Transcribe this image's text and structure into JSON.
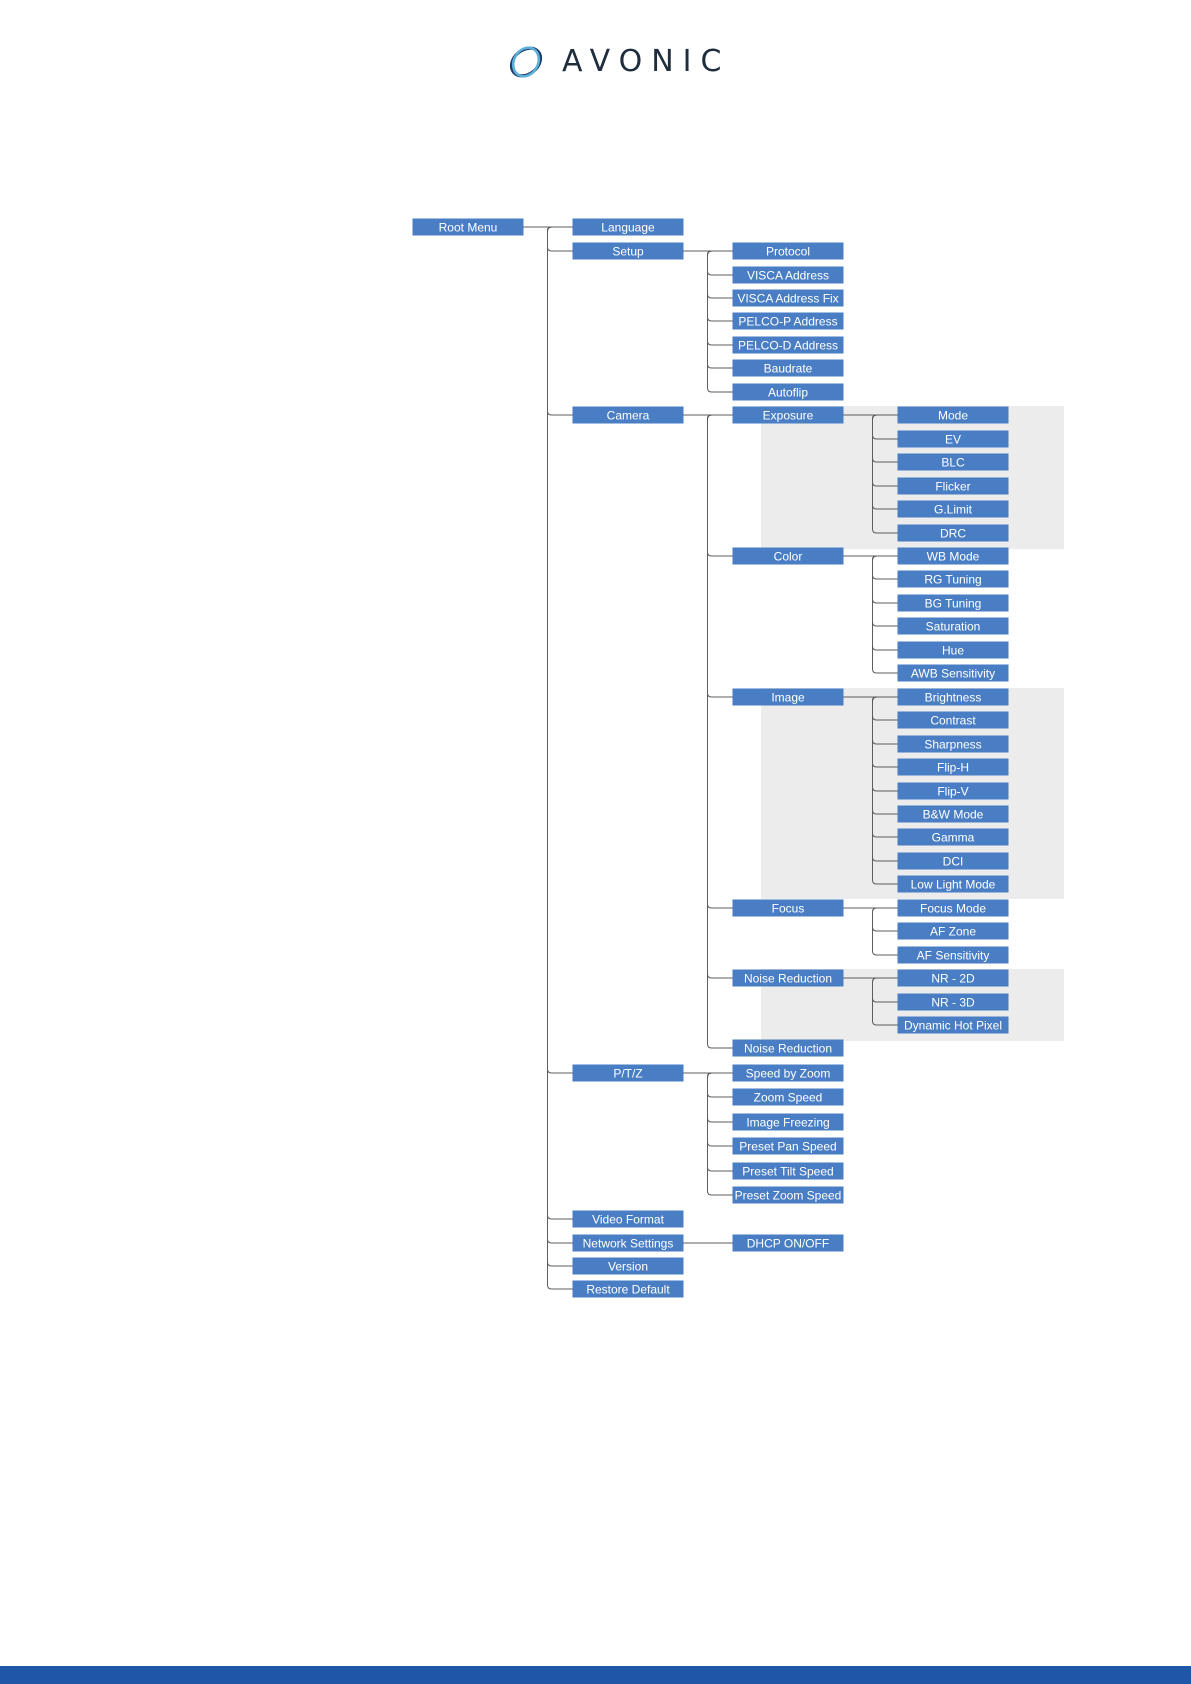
{
  "brand": {
    "name": "AVONIC",
    "colors": {
      "mark_dark": "#1f3a68",
      "mark_light": "#5ab0d8",
      "text": "#1f2d3d"
    }
  },
  "colors": {
    "box": "#4a7ec4",
    "box_text": "#ffffff",
    "line": "#5d5d5d",
    "shade": "#ececec",
    "footer": "#1f56a8"
  },
  "menu_tree": [
    {
      "id": "root",
      "label": "Root Menu",
      "level": 0
    },
    {
      "id": "language",
      "label": "Language",
      "level": 1,
      "parent": "root"
    },
    {
      "id": "setup",
      "label": "Setup",
      "level": 1,
      "parent": "root"
    },
    {
      "id": "protocol",
      "label": "Protocol",
      "level": 2,
      "parent": "setup"
    },
    {
      "id": "visca-address",
      "label": "VISCA Address",
      "level": 2,
      "parent": "setup"
    },
    {
      "id": "visca-address-fix",
      "label": "VISCA Address Fix",
      "level": 2,
      "parent": "setup"
    },
    {
      "id": "pelco-p-address",
      "label": "PELCO-P Address",
      "level": 2,
      "parent": "setup"
    },
    {
      "id": "pelco-d-address",
      "label": "PELCO-D Address",
      "level": 2,
      "parent": "setup"
    },
    {
      "id": "baudrate",
      "label": "Baudrate",
      "level": 2,
      "parent": "setup"
    },
    {
      "id": "autoflip",
      "label": "Autoflip",
      "level": 2,
      "parent": "setup"
    },
    {
      "id": "camera",
      "label": "Camera",
      "level": 1,
      "parent": "root"
    },
    {
      "id": "exposure",
      "label": "Exposure",
      "level": 2,
      "parent": "camera"
    },
    {
      "id": "mode",
      "label": "Mode",
      "level": 3,
      "parent": "exposure"
    },
    {
      "id": "ev",
      "label": "EV",
      "level": 3,
      "parent": "exposure"
    },
    {
      "id": "blc",
      "label": "BLC",
      "level": 3,
      "parent": "exposure"
    },
    {
      "id": "flicker",
      "label": "Flicker",
      "level": 3,
      "parent": "exposure"
    },
    {
      "id": "g-limit",
      "label": "G.Limit",
      "level": 3,
      "parent": "exposure"
    },
    {
      "id": "drc",
      "label": "DRC",
      "level": 3,
      "parent": "exposure"
    },
    {
      "id": "color",
      "label": "Color",
      "level": 2,
      "parent": "camera"
    },
    {
      "id": "wb-mode",
      "label": "WB Mode",
      "level": 3,
      "parent": "color"
    },
    {
      "id": "rg-tuning",
      "label": "RG Tuning",
      "level": 3,
      "parent": "color"
    },
    {
      "id": "bg-tuning",
      "label": "BG Tuning",
      "level": 3,
      "parent": "color"
    },
    {
      "id": "saturation",
      "label": "Saturation",
      "level": 3,
      "parent": "color"
    },
    {
      "id": "hue",
      "label": "Hue",
      "level": 3,
      "parent": "color"
    },
    {
      "id": "awb-sensitivity",
      "label": "AWB Sensitivity",
      "level": 3,
      "parent": "color"
    },
    {
      "id": "image",
      "label": "Image",
      "level": 2,
      "parent": "camera"
    },
    {
      "id": "brightness",
      "label": "Brightness",
      "level": 3,
      "parent": "image"
    },
    {
      "id": "contrast",
      "label": "Contrast",
      "level": 3,
      "parent": "image"
    },
    {
      "id": "sharpness",
      "label": "Sharpness",
      "level": 3,
      "parent": "image"
    },
    {
      "id": "flip-h",
      "label": "Flip-H",
      "level": 3,
      "parent": "image"
    },
    {
      "id": "flip-v",
      "label": "Flip-V",
      "level": 3,
      "parent": "image"
    },
    {
      "id": "bw-mode",
      "label": "B&W Mode",
      "level": 3,
      "parent": "image"
    },
    {
      "id": "gamma",
      "label": "Gamma",
      "level": 3,
      "parent": "image"
    },
    {
      "id": "dci",
      "label": "DCI",
      "level": 3,
      "parent": "image"
    },
    {
      "id": "low-light-mode",
      "label": "Low Light Mode",
      "level": 3,
      "parent": "image"
    },
    {
      "id": "focus",
      "label": "Focus",
      "level": 2,
      "parent": "camera"
    },
    {
      "id": "focus-mode",
      "label": "Focus Mode",
      "level": 3,
      "parent": "focus"
    },
    {
      "id": "af-zone",
      "label": "AF Zone",
      "level": 3,
      "parent": "focus"
    },
    {
      "id": "af-sensitivity",
      "label": "AF Sensitivity",
      "level": 3,
      "parent": "focus"
    },
    {
      "id": "noise-reduction",
      "label": "Noise Reduction",
      "level": 2,
      "parent": "camera"
    },
    {
      "id": "nr-2d",
      "label": "NR - 2D",
      "level": 3,
      "parent": "noise-reduction"
    },
    {
      "id": "nr-3d",
      "label": "NR - 3D",
      "level": 3,
      "parent": "noise-reduction"
    },
    {
      "id": "dynamic-hot-pixel",
      "label": "Dynamic Hot Pixel",
      "level": 3,
      "parent": "noise-reduction"
    },
    {
      "id": "noise-reduction-2",
      "label": "Noise Reduction",
      "level": 2,
      "parent": "camera"
    },
    {
      "id": "ptz",
      "label": "P/T/Z",
      "level": 1,
      "parent": "root"
    },
    {
      "id": "speed-by-zoom",
      "label": "Speed by Zoom",
      "level": 2,
      "parent": "ptz"
    },
    {
      "id": "zoom-speed",
      "label": "Zoom Speed",
      "level": 2,
      "parent": "ptz"
    },
    {
      "id": "image-freezing",
      "label": "Image Freezing",
      "level": 2,
      "parent": "ptz"
    },
    {
      "id": "preset-pan-speed",
      "label": "Preset Pan Speed",
      "level": 2,
      "parent": "ptz"
    },
    {
      "id": "preset-tilt-speed",
      "label": "Preset Tilt Speed",
      "level": 2,
      "parent": "ptz"
    },
    {
      "id": "preset-zoom-speed",
      "label": "Preset Zoom Speed",
      "level": 2,
      "parent": "ptz"
    },
    {
      "id": "video-format",
      "label": "Video Format",
      "level": 1,
      "parent": "root"
    },
    {
      "id": "network-settings",
      "label": "Network Settings",
      "level": 1,
      "parent": "root"
    },
    {
      "id": "dhcp-on-off",
      "label": "DHCP ON/OFF",
      "level": 2,
      "parent": "network-settings"
    },
    {
      "id": "version",
      "label": "Version",
      "level": 1,
      "parent": "root"
    },
    {
      "id": "restore-default",
      "label": "Restore Default",
      "level": 1,
      "parent": "root"
    }
  ]
}
